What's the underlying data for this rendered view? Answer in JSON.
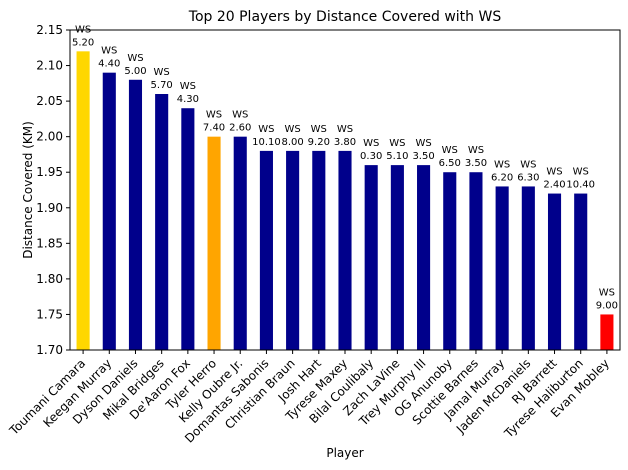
{
  "chart_data": {
    "type": "bar",
    "title": "Top 20 Players by Distance Covered with WS",
    "xlabel": "Player",
    "ylabel": "Distance Covered (KM)",
    "ylim": [
      1.7,
      2.15
    ],
    "yticks": [
      "1.70",
      "1.75",
      "1.80",
      "1.85",
      "1.90",
      "1.95",
      "2.00",
      "2.05",
      "2.10",
      "2.15"
    ],
    "grid": false,
    "annotation_prefix": "WS",
    "categories": [
      "Toumani Camara",
      "Keegan Murray",
      "Dyson Daniels",
      "Mikal Bridges",
      "De'Aaron Fox",
      "Tyler Herro",
      "Kelly Oubre Jr.",
      "Domantas Sabonis",
      "Christian Braun",
      "Josh Hart",
      "Tyrese Maxey",
      "Bilal Coulibaly",
      "Zach LaVine",
      "Trey Murphy III",
      "OG Anunoby",
      "Scottie Barnes",
      "Jamal Murray",
      "Jaden McDaniels",
      "RJ Barrett",
      "Tyrese Haliburton",
      "Evan Mobley"
    ],
    "values": [
      2.12,
      2.09,
      2.08,
      2.06,
      2.04,
      2.0,
      2.0,
      1.98,
      1.98,
      1.98,
      1.98,
      1.96,
      1.96,
      1.96,
      1.95,
      1.95,
      1.93,
      1.93,
      1.92,
      1.92,
      1.75
    ],
    "ws_labels": [
      "5.20",
      "4.40",
      "5.00",
      "5.70",
      "4.30",
      "7.40",
      "2.60",
      "10.10",
      "8.00",
      "9.20",
      "3.80",
      "0.30",
      "5.10",
      "3.50",
      "6.50",
      "3.50",
      "6.20",
      "6.30",
      "2.40",
      "10.40",
      "9.00"
    ],
    "colors": [
      "#FFD700",
      "#00008B",
      "#00008B",
      "#00008B",
      "#00008B",
      "#FFA500",
      "#00008B",
      "#00008B",
      "#00008B",
      "#00008B",
      "#00008B",
      "#00008B",
      "#00008B",
      "#00008B",
      "#00008B",
      "#00008B",
      "#00008B",
      "#00008B",
      "#00008B",
      "#00008B",
      "#FF0000"
    ]
  }
}
